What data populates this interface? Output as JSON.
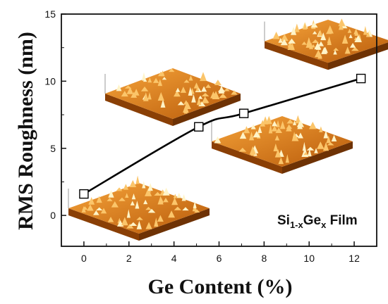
{
  "chart_data": {
    "type": "line",
    "xlabel": "Ge Content (%)",
    "ylabel": "RMS Roughness (nm)",
    "xlim": [
      -1,
      13
    ],
    "ylim": [
      -2.3,
      15
    ],
    "xticks": [
      "0",
      "2",
      "4",
      "6",
      "8",
      "10",
      "12"
    ],
    "yticks": [
      "0",
      "5",
      "10",
      "15"
    ],
    "series": [
      {
        "markers": "open-square",
        "x": [
          0,
          5.1,
          7.1,
          12.3
        ],
        "y": [
          1.6,
          6.6,
          7.6,
          10.2
        ]
      }
    ],
    "annotation": {
      "base1": "Si",
      "sub1": "1-x",
      "base2": "Ge",
      "sub2": "x",
      "tail": " Film"
    },
    "afm_insets": [
      {
        "at_x": 0,
        "at_y": 1.6
      },
      {
        "at_x": 5.1,
        "at_y": 6.6
      },
      {
        "at_x": 7.1,
        "at_y": 7.6
      },
      {
        "at_x": 12.3,
        "at_y": 10.2
      }
    ],
    "colors": {
      "afm_surface_light": "#f6a43a",
      "afm_surface_dark": "#b85a0a",
      "afm_peak": "#fff4c8",
      "axis": "#111111",
      "curve": "#000000"
    }
  }
}
